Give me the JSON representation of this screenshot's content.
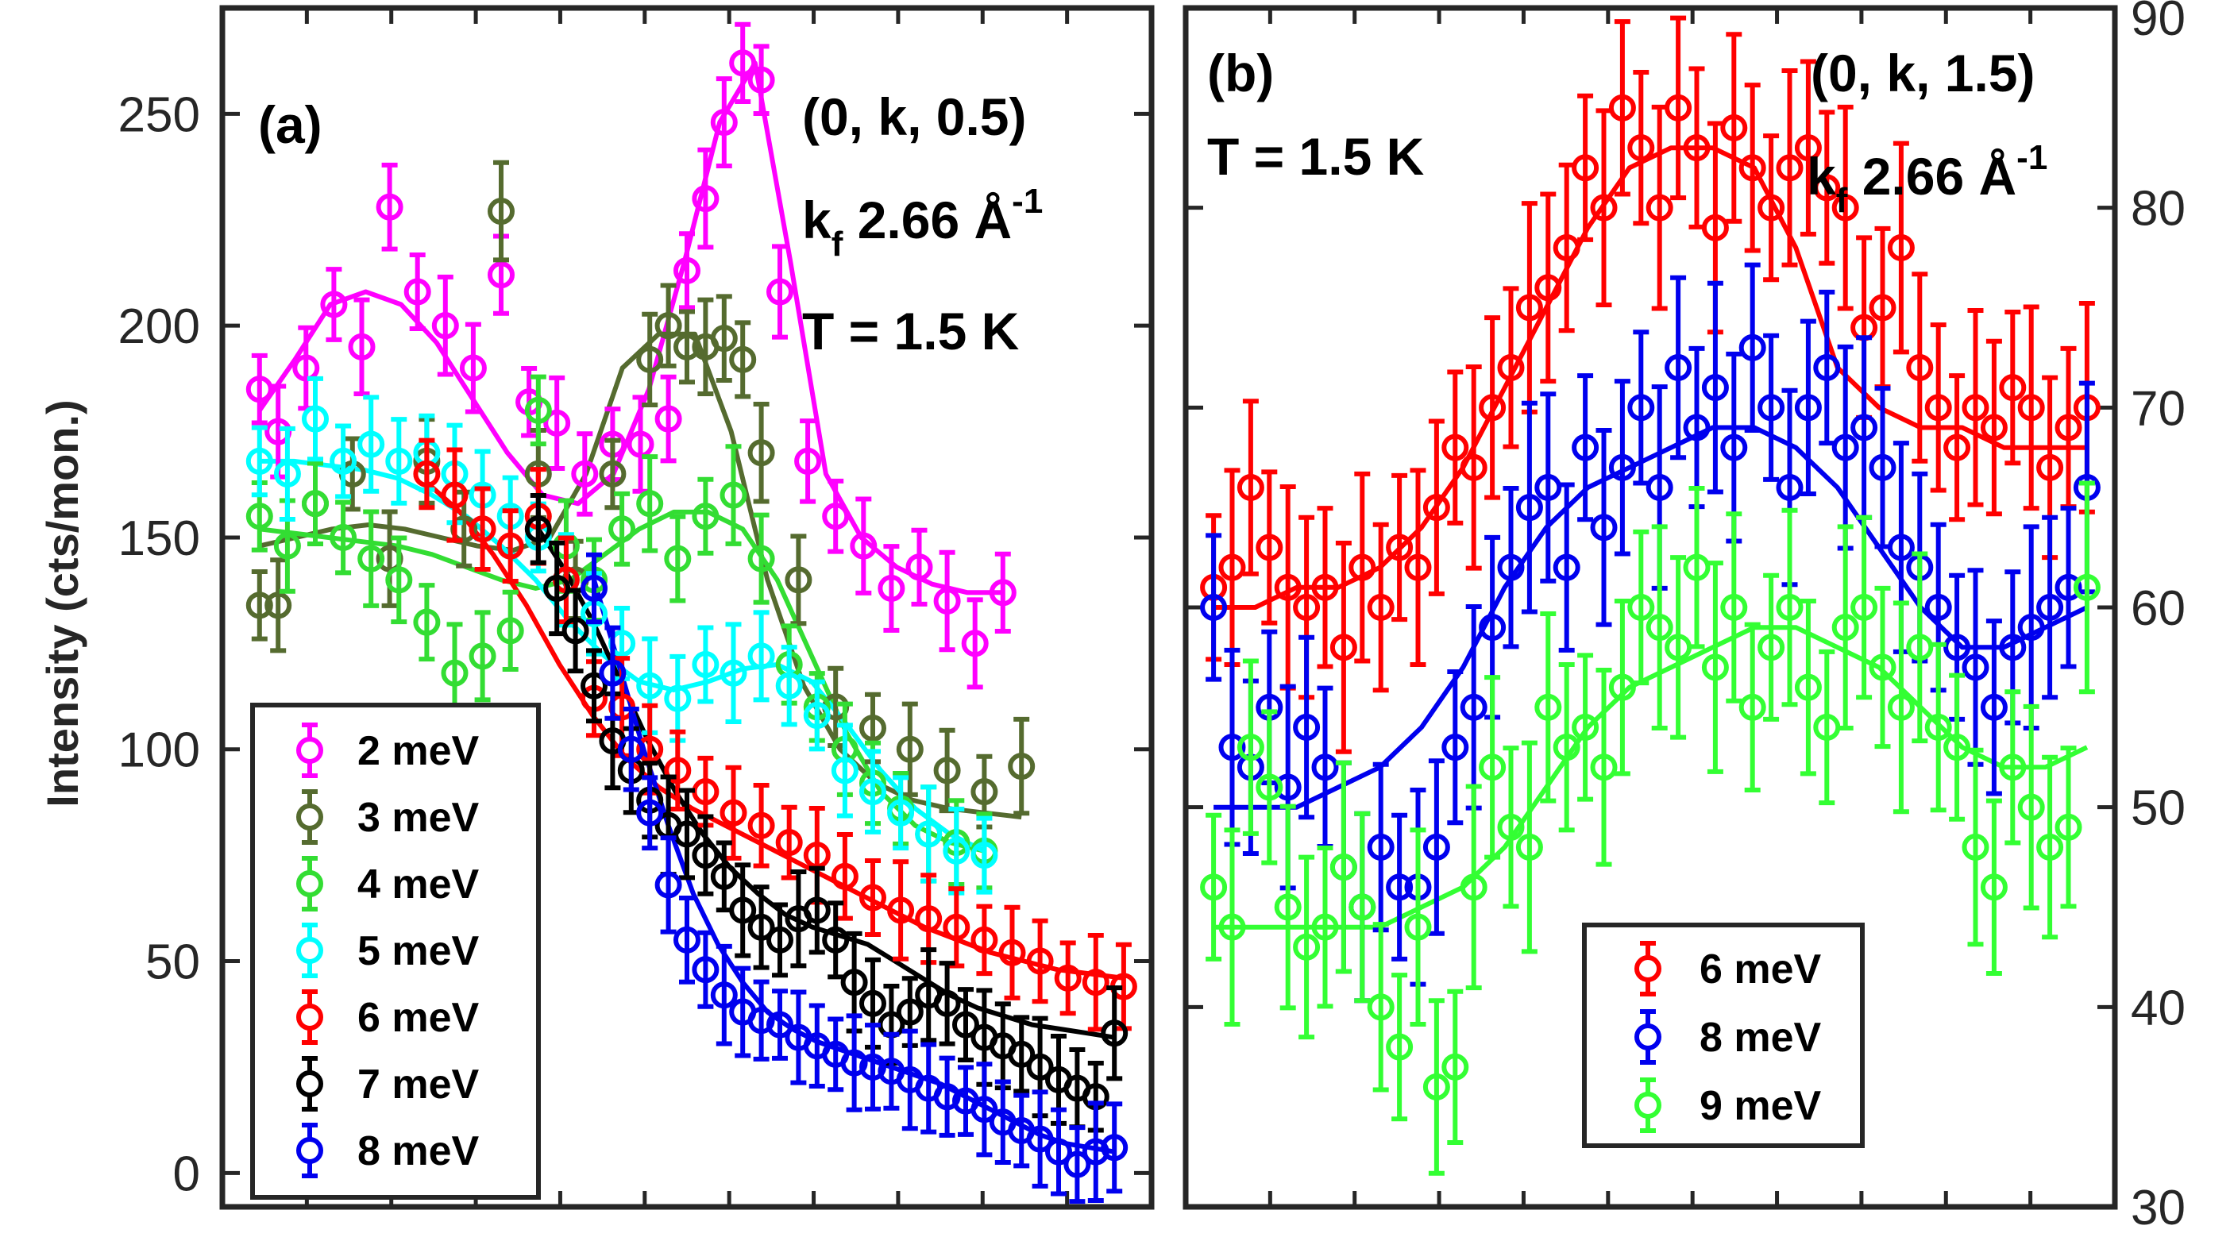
{
  "chart_data": [
    {
      "id": "a",
      "type": "scatter",
      "panel_label": "(a)",
      "annotations": {
        "q": "(0, k, 0.5)",
        "kf_main": "k",
        "kf_sub": "f",
        "kf_val": " 2.66 Å",
        "kf_sup": "-1",
        "temp": "T = 1.5 K"
      },
      "ylabel": "Intensity (cts/mon.)",
      "ylim": [
        -8,
        275
      ],
      "xlim": [
        0,
        1
      ],
      "yticks": [
        0,
        50,
        100,
        150,
        200,
        250
      ],
      "legend_location": "lower-left",
      "series": [
        {
          "name": "2 meV",
          "color": "#ff00ff",
          "x": [
            0.04,
            0.06,
            0.09,
            0.12,
            0.15,
            0.18,
            0.21,
            0.24,
            0.27,
            0.3,
            0.33,
            0.36,
            0.39,
            0.42,
            0.45,
            0.48,
            0.5,
            0.52,
            0.54,
            0.56,
            0.58,
            0.6,
            0.63,
            0.66,
            0.69,
            0.72,
            0.75,
            0.78,
            0.81,
            0.84
          ],
          "y": [
            185,
            175,
            190,
            205,
            195,
            228,
            208,
            200,
            190,
            212,
            182,
            177,
            165,
            172,
            172,
            178,
            213,
            230,
            248,
            262,
            258,
            208,
            168,
            155,
            148,
            138,
            143,
            135,
            125,
            137
          ],
          "fit": [
            180,
            192,
            205,
            208,
            205,
            196,
            183,
            170,
            160,
            158,
            165,
            185,
            215,
            248,
            262,
            215,
            165,
            150,
            143,
            139,
            137,
            137
          ]
        },
        {
          "name": "3 meV",
          "color": "#556b2f",
          "x": [
            0.04,
            0.06,
            0.1,
            0.14,
            0.18,
            0.22,
            0.26,
            0.3,
            0.34,
            0.38,
            0.42,
            0.46,
            0.48,
            0.5,
            0.52,
            0.54,
            0.56,
            0.58,
            0.62,
            0.66,
            0.7,
            0.74,
            0.78,
            0.82,
            0.86
          ],
          "y": [
            134,
            134,
            158,
            165,
            145,
            168,
            152,
            227,
            165,
            140,
            165,
            192,
            200,
            195,
            195,
            197,
            192,
            170,
            140,
            110,
            105,
            100,
            95,
            90,
            96
          ],
          "fit": [
            148,
            150,
            152,
            153,
            152,
            150,
            148,
            147,
            150,
            165,
            190,
            198,
            198,
            175,
            140,
            115,
            100,
            92,
            88,
            86,
            85,
            84
          ]
        },
        {
          "name": "4 meV",
          "color": "#33dd33",
          "x": [
            0.04,
            0.07,
            0.1,
            0.13,
            0.16,
            0.19,
            0.22,
            0.25,
            0.28,
            0.31,
            0.34,
            0.37,
            0.4,
            0.43,
            0.46,
            0.49,
            0.52,
            0.55,
            0.58,
            0.61,
            0.64,
            0.67,
            0.7,
            0.73,
            0.76,
            0.79,
            0.82
          ],
          "y": [
            155,
            148,
            158,
            150,
            145,
            140,
            130,
            118,
            122,
            128,
            180,
            148,
            140,
            152,
            158,
            145,
            155,
            160,
            145,
            120,
            110,
            100,
            92,
            86,
            80,
            78,
            76
          ],
          "fit": [
            152,
            151,
            150,
            149,
            148,
            146,
            143,
            140,
            138,
            140,
            146,
            152,
            156,
            156,
            152,
            140,
            122,
            104,
            90,
            82,
            78,
            76
          ]
        },
        {
          "name": "5 meV",
          "color": "#00ffff",
          "x": [
            0.04,
            0.07,
            0.1,
            0.13,
            0.16,
            0.19,
            0.22,
            0.25,
            0.28,
            0.31,
            0.34,
            0.37,
            0.4,
            0.43,
            0.46,
            0.49,
            0.52,
            0.55,
            0.58,
            0.61,
            0.64,
            0.67,
            0.7,
            0.73,
            0.76,
            0.79,
            0.82
          ],
          "y": [
            168,
            165,
            178,
            168,
            172,
            168,
            170,
            165,
            160,
            155,
            150,
            140,
            132,
            125,
            115,
            112,
            120,
            118,
            122,
            115,
            108,
            95,
            90,
            85,
            80,
            76,
            75
          ],
          "fit": [
            168,
            168,
            167,
            166,
            164,
            160,
            155,
            148,
            140,
            130,
            122,
            116,
            114,
            116,
            119,
            120,
            116,
            106,
            95,
            86,
            80,
            76
          ]
        },
        {
          "name": "6 meV",
          "color": "#ff0000",
          "x": [
            0.22,
            0.25,
            0.28,
            0.31,
            0.34,
            0.37,
            0.4,
            0.43,
            0.46,
            0.49,
            0.52,
            0.55,
            0.58,
            0.61,
            0.64,
            0.67,
            0.7,
            0.73,
            0.76,
            0.79,
            0.82,
            0.85,
            0.88,
            0.91,
            0.94,
            0.97
          ],
          "y": [
            165,
            160,
            152,
            148,
            155,
            140,
            112,
            110,
            100,
            95,
            90,
            85,
            82,
            78,
            75,
            70,
            65,
            62,
            60,
            58,
            55,
            52,
            50,
            46,
            45,
            44
          ],
          "fit": [
            163,
            156,
            146,
            134,
            120,
            108,
            98,
            91,
            86,
            82,
            78,
            74,
            70,
            66,
            62,
            58,
            55,
            52,
            50,
            48,
            47,
            46
          ]
        },
        {
          "name": "7 meV",
          "color": "#000000",
          "x": [
            0.34,
            0.36,
            0.38,
            0.4,
            0.42,
            0.44,
            0.46,
            0.48,
            0.5,
            0.52,
            0.54,
            0.56,
            0.58,
            0.6,
            0.62,
            0.64,
            0.66,
            0.68,
            0.7,
            0.72,
            0.74,
            0.76,
            0.78,
            0.8,
            0.82,
            0.84,
            0.86,
            0.88,
            0.9,
            0.92,
            0.94,
            0.96
          ],
          "y": [
            152,
            138,
            128,
            115,
            102,
            95,
            88,
            82,
            80,
            75,
            70,
            62,
            58,
            55,
            60,
            62,
            55,
            45,
            40,
            35,
            38,
            42,
            40,
            35,
            32,
            30,
            28,
            25,
            22,
            20,
            18,
            33
          ],
          "fit": [
            152,
            142,
            130,
            116,
            102,
            90,
            80,
            72,
            66,
            61,
            58,
            56,
            54,
            50,
            46,
            42,
            39,
            37,
            35,
            34,
            33,
            32
          ]
        },
        {
          "name": "8 meV",
          "color": "#0000ee",
          "x": [
            0.4,
            0.42,
            0.44,
            0.46,
            0.48,
            0.5,
            0.52,
            0.54,
            0.56,
            0.58,
            0.6,
            0.62,
            0.64,
            0.66,
            0.68,
            0.7,
            0.72,
            0.74,
            0.76,
            0.78,
            0.8,
            0.82,
            0.84,
            0.86,
            0.88,
            0.9,
            0.92,
            0.94,
            0.96
          ],
          "y": [
            138,
            118,
            100,
            85,
            68,
            55,
            48,
            42,
            38,
            36,
            35,
            32,
            30,
            28,
            26,
            25,
            24,
            22,
            20,
            18,
            17,
            15,
            12,
            10,
            8,
            5,
            2,
            5,
            6
          ],
          "fit": [
            140,
            120,
            100,
            82,
            66,
            54,
            45,
            38,
            34,
            31,
            29,
            27,
            25,
            23,
            21,
            18,
            15,
            12,
            9,
            7,
            6,
            5
          ]
        }
      ],
      "legend": [
        "2 meV",
        "3 meV",
        "4 meV",
        "5 meV",
        "6 meV",
        "7 meV",
        "8 meV"
      ]
    },
    {
      "id": "b",
      "type": "scatter",
      "panel_label": "(b)",
      "annotations": {
        "q": "(0, k, 1.5)",
        "kf_main": "k",
        "kf_sub": "f",
        "kf_val": " 2.66 Å",
        "kf_sup": "-1",
        "temp": "T = 1.5 K"
      },
      "ylim": [
        30,
        90
      ],
      "xlim": [
        0,
        1
      ],
      "yticks": [
        30,
        40,
        50,
        60,
        70,
        80,
        90
      ],
      "legend_location": "bottom-center",
      "series": [
        {
          "name": "6 meV",
          "color": "#ff0000",
          "x": [
            0.03,
            0.05,
            0.07,
            0.09,
            0.11,
            0.13,
            0.15,
            0.17,
            0.19,
            0.21,
            0.23,
            0.25,
            0.27,
            0.29,
            0.31,
            0.33,
            0.35,
            0.37,
            0.39,
            0.41,
            0.43,
            0.45,
            0.47,
            0.49,
            0.51,
            0.53,
            0.55,
            0.57,
            0.59,
            0.61,
            0.63,
            0.65,
            0.67,
            0.69,
            0.71,
            0.73,
            0.75,
            0.77,
            0.79,
            0.81,
            0.83,
            0.85,
            0.87,
            0.89,
            0.91,
            0.93,
            0.95,
            0.97
          ],
          "y": [
            61,
            62,
            66,
            63,
            61,
            60,
            61,
            58,
            62,
            60,
            63,
            62,
            65,
            68,
            67,
            70,
            72,
            75,
            76,
            78,
            82,
            80,
            85,
            83,
            80,
            85,
            83,
            79,
            84,
            82,
            80,
            82,
            83,
            81,
            80,
            74,
            75,
            78,
            72,
            70,
            68,
            70,
            69,
            71,
            70,
            67,
            69,
            70
          ],
          "fit": [
            60,
            60,
            61,
            61,
            62,
            64,
            67,
            71,
            75,
            79,
            82,
            83,
            83,
            82,
            78,
            72,
            70,
            69,
            69,
            68,
            68,
            68
          ]
        },
        {
          "name": "8 meV",
          "color": "#0000ee",
          "x": [
            0.03,
            0.05,
            0.07,
            0.09,
            0.11,
            0.13,
            0.15,
            0.17,
            0.19,
            0.21,
            0.23,
            0.25,
            0.27,
            0.29,
            0.31,
            0.33,
            0.35,
            0.37,
            0.39,
            0.41,
            0.43,
            0.45,
            0.47,
            0.49,
            0.51,
            0.53,
            0.55,
            0.57,
            0.59,
            0.61,
            0.63,
            0.65,
            0.67,
            0.69,
            0.71,
            0.73,
            0.75,
            0.77,
            0.79,
            0.81,
            0.83,
            0.85,
            0.87,
            0.89,
            0.91,
            0.93,
            0.95,
            0.97
          ],
          "y": [
            60,
            53,
            52,
            55,
            51,
            54,
            52,
            47,
            45,
            48,
            46,
            46,
            48,
            53,
            55,
            59,
            62,
            65,
            66,
            62,
            68,
            64,
            67,
            70,
            66,
            72,
            69,
            71,
            68,
            73,
            70,
            66,
            70,
            72,
            68,
            69,
            67,
            63,
            62,
            60,
            58,
            57,
            55,
            58,
            59,
            60,
            61,
            66
          ],
          "fit": [
            50,
            50,
            50,
            51,
            52,
            54,
            57,
            61,
            64,
            66,
            67,
            68,
            69,
            69,
            68,
            66,
            63,
            60,
            58,
            58,
            59,
            60
          ]
        },
        {
          "name": "9 meV",
          "color": "#33ff33",
          "x": [
            0.03,
            0.05,
            0.07,
            0.09,
            0.11,
            0.13,
            0.15,
            0.17,
            0.19,
            0.21,
            0.23,
            0.25,
            0.27,
            0.29,
            0.31,
            0.33,
            0.35,
            0.37,
            0.39,
            0.41,
            0.43,
            0.45,
            0.47,
            0.49,
            0.51,
            0.53,
            0.55,
            0.57,
            0.59,
            0.61,
            0.63,
            0.65,
            0.67,
            0.69,
            0.71,
            0.73,
            0.75,
            0.77,
            0.79,
            0.81,
            0.83,
            0.85,
            0.87,
            0.89,
            0.91,
            0.93,
            0.95,
            0.97
          ],
          "y": [
            46,
            44,
            53,
            51,
            45,
            43,
            44,
            47,
            45,
            40,
            38,
            44,
            36,
            37,
            46,
            52,
            49,
            48,
            55,
            53,
            54,
            52,
            56,
            60,
            59,
            58,
            62,
            57,
            60,
            55,
            58,
            60,
            56,
            54,
            59,
            60,
            57,
            55,
            58,
            54,
            53,
            48,
            46,
            52,
            50,
            48,
            49,
            61
          ],
          "fit": [
            44,
            44,
            44,
            44,
            44,
            45,
            46,
            48,
            51,
            54,
            56,
            57,
            58,
            59,
            59,
            58,
            57,
            55,
            53,
            52,
            52,
            53
          ]
        }
      ],
      "legend": [
        "6 meV",
        "8 meV",
        "9 meV"
      ]
    }
  ]
}
